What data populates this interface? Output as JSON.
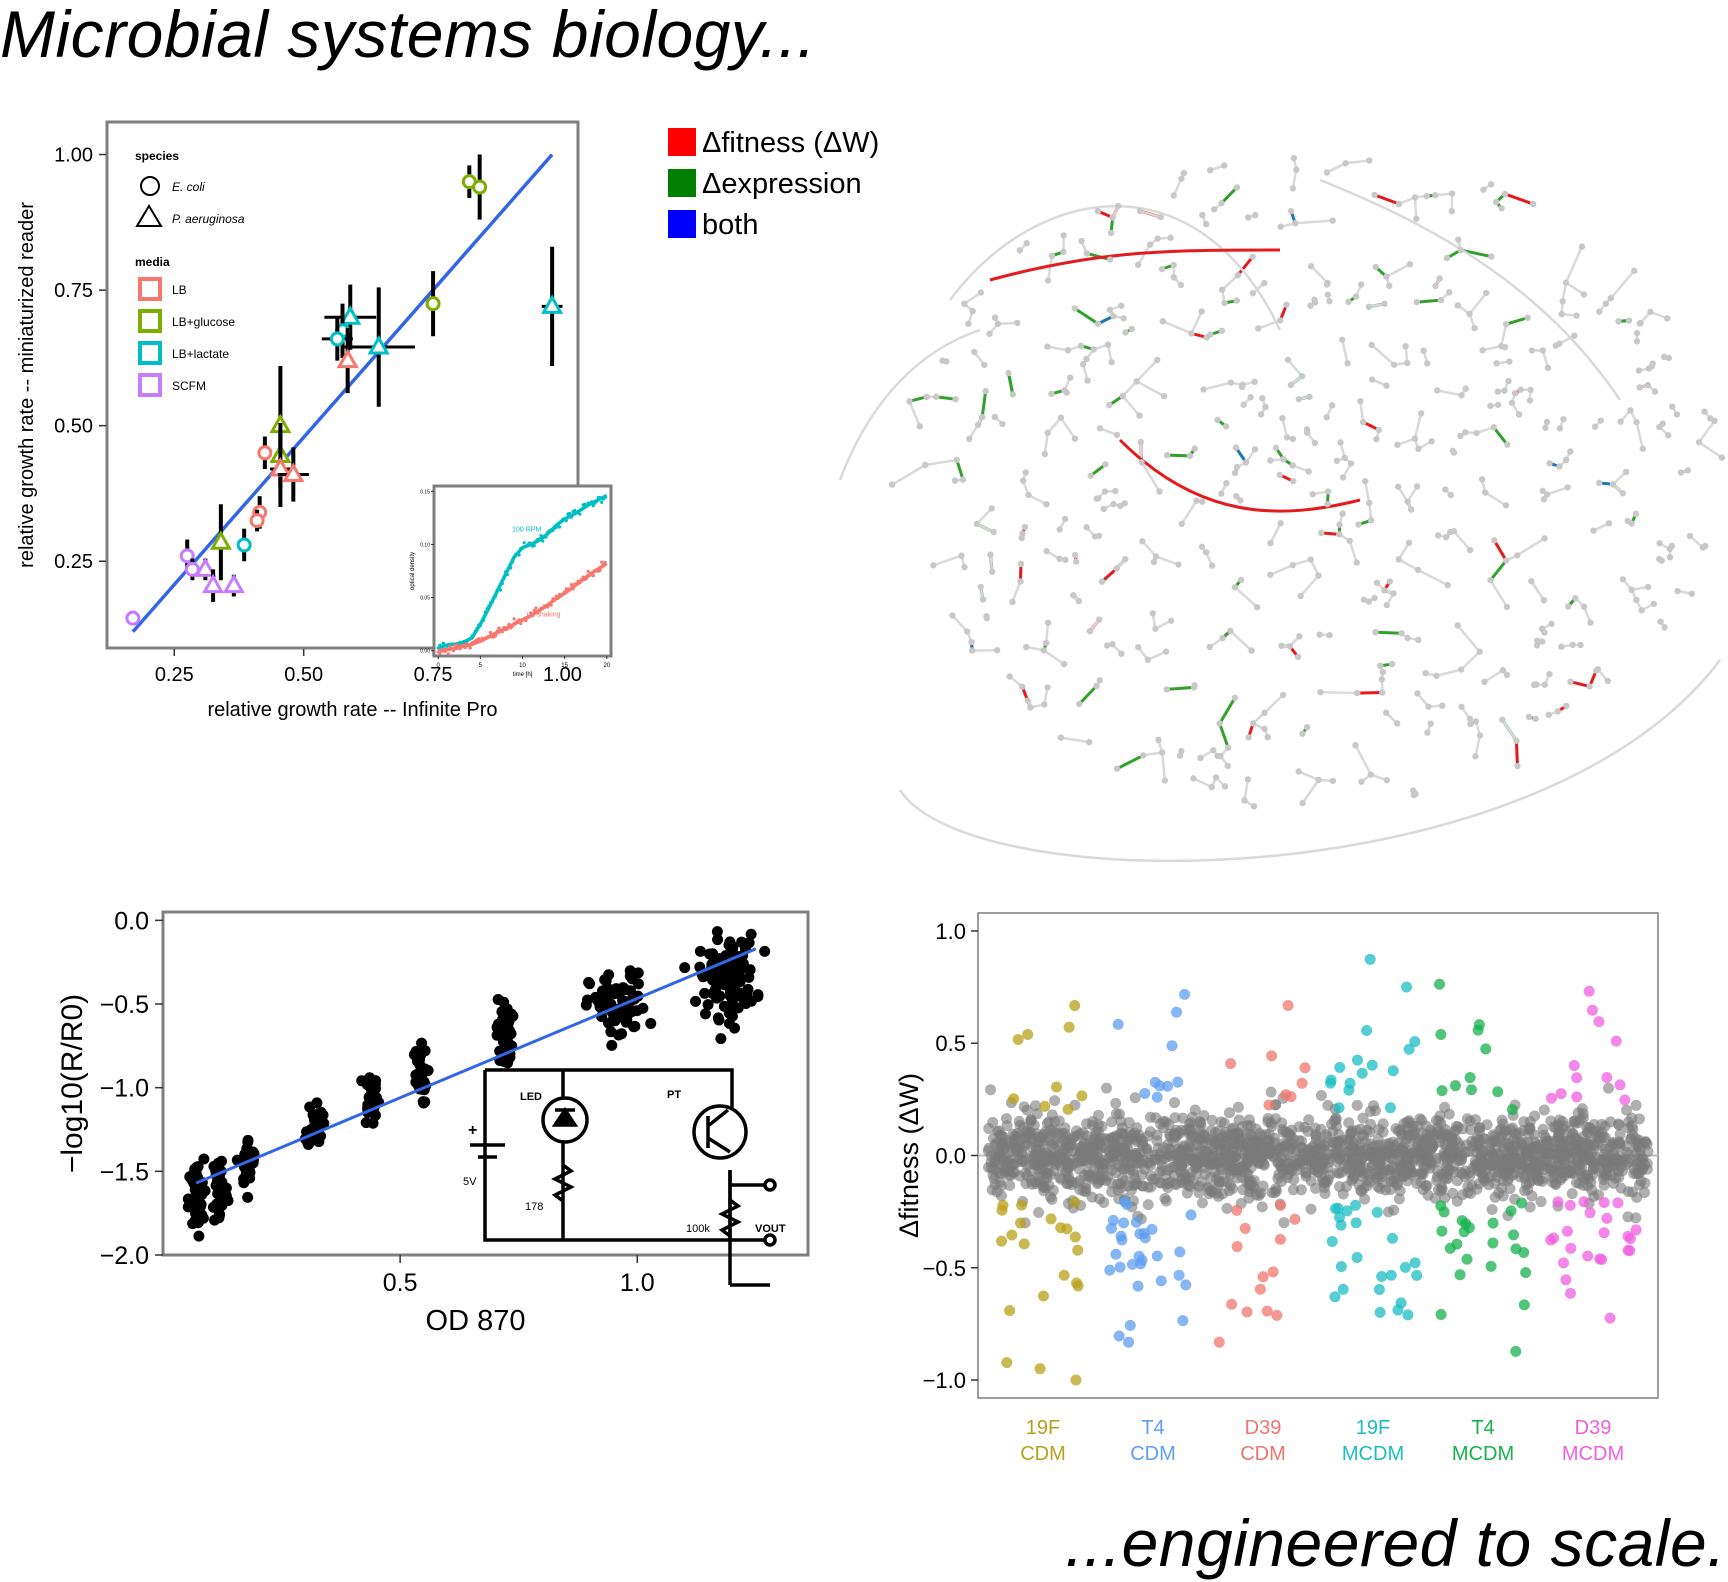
{
  "header": {
    "title": "Microbial systems biology...",
    "tagline": "...engineered to scale."
  },
  "colors": {
    "LB": "#f8766d",
    "LB+glucose": "#7cae00",
    "LB+lactate": "#00bfc4",
    "SCFM": "#c77cff",
    "fit_line": "#3366e6",
    "network_fitness": "#e41a1c",
    "network_expression": "#33a02c",
    "network_both": "#1f78b4"
  },
  "chart_data": [
    {
      "id": "growth-comparison",
      "type": "scatter",
      "title": "",
      "xlabel": "relative growth rate -- Infinite Pro",
      "ylabel": "relative growth rate -- miniaturized reader",
      "xlim": [
        0.12,
        1.03
      ],
      "ylim": [
        0.09,
        1.06
      ],
      "xticks": [
        "0.25",
        "0.50",
        "0.75",
        "1.00"
      ],
      "xtick_values": [
        0.25,
        0.5,
        0.75,
        1.0
      ],
      "yticks": [
        "0.25",
        "0.50",
        "0.75",
        "1.00"
      ],
      "ytick_values": [
        0.25,
        0.5,
        0.75,
        1.0
      ],
      "grid": false,
      "legend": {
        "placement": "top-left",
        "species_title": "species",
        "species": [
          {
            "name": "E. coli",
            "shape": "circle"
          },
          {
            "name": "P. aeruginosa",
            "shape": "triangle"
          }
        ],
        "media_title": "media",
        "media": [
          "LB",
          "LB+glucose",
          "LB+lactate",
          "SCFM"
        ]
      },
      "fit_line": {
        "x": [
          0.17,
          0.98
        ],
        "y": [
          0.12,
          1.0
        ]
      },
      "points": [
        {
          "x": 0.82,
          "y": 0.95,
          "sp": "circle",
          "m": "LB+glucose",
          "yerr": 0.03
        },
        {
          "x": 0.84,
          "y": 0.94,
          "sp": "circle",
          "m": "LB+glucose",
          "yerr": 0.06
        },
        {
          "x": 0.75,
          "y": 0.725,
          "sp": "circle",
          "m": "LB+glucose",
          "yerr": 0.06
        },
        {
          "x": 0.98,
          "y": 0.72,
          "sp": "triangle",
          "m": "LB+lactate",
          "yerr": 0.11,
          "xerr": 0.02
        },
        {
          "x": 0.59,
          "y": 0.7,
          "sp": "triangle",
          "m": "LB+lactate",
          "yerr": 0.06,
          "xerr": 0.05
        },
        {
          "x": 0.575,
          "y": 0.675,
          "sp": "circle",
          "m": "LB+lactate",
          "yerr": 0.05
        },
        {
          "x": 0.565,
          "y": 0.66,
          "sp": "circle",
          "m": "LB+lactate",
          "yerr": 0.04,
          "xerr": 0.03
        },
        {
          "x": 0.645,
          "y": 0.645,
          "sp": "triangle",
          "m": "LB+lactate",
          "yerr": 0.11,
          "xerr": 0.07
        },
        {
          "x": 0.585,
          "y": 0.62,
          "sp": "triangle",
          "m": "LB",
          "yerr": 0.06
        },
        {
          "x": 0.455,
          "y": 0.5,
          "sp": "triangle",
          "m": "LB+glucose",
          "yerr": 0.11
        },
        {
          "x": 0.455,
          "y": 0.445,
          "sp": "triangle",
          "m": "LB+glucose",
          "yerr": 0.06
        },
        {
          "x": 0.425,
          "y": 0.45,
          "sp": "circle",
          "m": "LB",
          "yerr": 0.03
        },
        {
          "x": 0.455,
          "y": 0.42,
          "sp": "triangle",
          "m": "LB",
          "yerr": 0.07,
          "xerr": 0.02
        },
        {
          "x": 0.48,
          "y": 0.41,
          "sp": "triangle",
          "m": "LB",
          "yerr": 0.05,
          "xerr": 0.03
        },
        {
          "x": 0.415,
          "y": 0.34,
          "sp": "circle",
          "m": "LB",
          "yerr": 0.03
        },
        {
          "x": 0.41,
          "y": 0.325,
          "sp": "circle",
          "m": "LB",
          "yerr": 0.02
        },
        {
          "x": 0.34,
          "y": 0.285,
          "sp": "triangle",
          "m": "LB+glucose",
          "yerr": 0.07
        },
        {
          "x": 0.385,
          "y": 0.28,
          "sp": "circle",
          "m": "LB+lactate",
          "yerr": 0.03
        },
        {
          "x": 0.275,
          "y": 0.26,
          "sp": "circle",
          "m": "SCFM",
          "yerr": 0.03
        },
        {
          "x": 0.285,
          "y": 0.235,
          "sp": "circle",
          "m": "SCFM",
          "yerr": 0.02
        },
        {
          "x": 0.31,
          "y": 0.235,
          "sp": "triangle",
          "m": "SCFM",
          "yerr": 0.02
        },
        {
          "x": 0.325,
          "y": 0.205,
          "sp": "triangle",
          "m": "SCFM",
          "yerr": 0.03
        },
        {
          "x": 0.365,
          "y": 0.205,
          "sp": "triangle",
          "m": "SCFM",
          "yerr": 0.02
        },
        {
          "x": 0.17,
          "y": 0.145,
          "sp": "circle",
          "m": "SCFM",
          "yerr": 0.01
        }
      ]
    },
    {
      "id": "growth-curve-inset",
      "type": "line",
      "xlabel": "time [h]",
      "ylabel": "optical density",
      "xlim": [
        -0.5,
        20.5
      ],
      "ylim": [
        -0.005,
        0.155
      ],
      "xticks": [
        "0",
        "5",
        "10",
        "15",
        "20"
      ],
      "xtick_values": [
        0,
        5,
        10,
        15,
        20
      ],
      "yticks": [
        "0.00",
        "0.05",
        "0.10",
        "0.15"
      ],
      "ytick_values": [
        0,
        0.05,
        0.1,
        0.15
      ],
      "annotations": [
        {
          "text": "100 RPM",
          "x": 10.5,
          "y": 0.112
        },
        {
          "text": "no shaking",
          "x": 12.5,
          "y": 0.032
        }
      ],
      "series": [
        {
          "key": "LB+lactate",
          "x": [
            0,
            1,
            2,
            3,
            4,
            5,
            6,
            7,
            8,
            9,
            10,
            11,
            12,
            13,
            14,
            15,
            16,
            17,
            18,
            19,
            20
          ],
          "y": [
            0.003,
            0.005,
            0.006,
            0.008,
            0.012,
            0.025,
            0.04,
            0.056,
            0.072,
            0.088,
            0.097,
            0.1,
            0.104,
            0.11,
            0.118,
            0.124,
            0.128,
            0.133,
            0.138,
            0.142,
            0.146
          ]
        },
        {
          "key": "LB",
          "x": [
            0,
            1,
            2,
            3,
            4,
            5,
            6,
            7,
            8,
            9,
            10,
            11,
            12,
            13,
            14,
            15,
            16,
            17,
            18,
            19,
            20
          ],
          "y": [
            0.0,
            0.001,
            0.002,
            0.004,
            0.006,
            0.009,
            0.013,
            0.017,
            0.021,
            0.025,
            0.029,
            0.033,
            0.038,
            0.043,
            0.049,
            0.054,
            0.06,
            0.066,
            0.072,
            0.077,
            0.082
          ]
        }
      ]
    },
    {
      "id": "metabolic-network",
      "type": "diagram",
      "legend": {
        "placement": "top-left",
        "items": [
          {
            "label": "Δfitness (ΔW)",
            "key": "network_fitness"
          },
          {
            "label": "Δexpression",
            "key": "network_expression"
          },
          {
            "label": "both",
            "key": "network_both"
          }
        ]
      }
    },
    {
      "id": "optical-density-calibration",
      "type": "scatter",
      "title": "",
      "xlabel": "OD 870",
      "ylabel": "−log10(R/R0)",
      "xlim": [
        0.0,
        1.36
      ],
      "ylim": [
        -2.0,
        0.05
      ],
      "xticks": [
        "0.5",
        "1.0"
      ],
      "xtick_values": [
        0.5,
        1.0
      ],
      "yticks": [
        "0.0",
        "−0.5",
        "−1.0",
        "−1.5",
        "−2.0"
      ],
      "ytick_values": [
        0.0,
        -0.5,
        -1.0,
        -1.5,
        -2.0
      ],
      "fit_line": {
        "x": [
          0.07,
          1.25
        ],
        "y": [
          -1.57,
          -0.17
        ]
      },
      "clusters": [
        {
          "x": 0.07,
          "mean": -1.67,
          "spread": 0.2,
          "n": 45
        },
        {
          "x": 0.12,
          "mean": -1.6,
          "spread": 0.2,
          "n": 45
        },
        {
          "x": 0.18,
          "mean": -1.45,
          "spread": 0.12,
          "n": 30
        },
        {
          "x": 0.32,
          "mean": -1.22,
          "spread": 0.12,
          "n": 30
        },
        {
          "x": 0.44,
          "mean": -1.05,
          "spread": 0.14,
          "n": 35
        },
        {
          "x": 0.54,
          "mean": -0.93,
          "spread": 0.14,
          "n": 35
        },
        {
          "x": 0.72,
          "mean": -0.68,
          "spread": 0.18,
          "n": 40
        },
        {
          "x": 0.96,
          "mean": -0.52,
          "spread": 0.17,
          "n": 75
        },
        {
          "x": 1.19,
          "mean": -0.33,
          "spread": 0.2,
          "n": 110
        }
      ],
      "inset_circuit": {
        "labels": {
          "led": "LED",
          "pt": "PT",
          "battery": "5V",
          "r1": "178",
          "r2": "100k",
          "out": "VOUT"
        }
      }
    },
    {
      "id": "fitness-distribution",
      "type": "scatter",
      "title": "",
      "xlabel": "",
      "ylabel": "Δfitness (ΔW)",
      "ylim": [
        -1.08,
        1.08
      ],
      "yticks": [
        "1.0",
        "0.5",
        "0.0",
        "−0.5",
        "−1.0"
      ],
      "ytick_values": [
        1.0,
        0.5,
        0.0,
        -0.5,
        -1.0
      ],
      "reference_line": 0.0,
      "groups": [
        {
          "label_line1": "19F",
          "label_line2": "CDM",
          "color": "#b8a11a",
          "n_outliers": 30
        },
        {
          "label_line1": "T4",
          "label_line2": "CDM",
          "color": "#5f9ef0",
          "n_outliers": 40
        },
        {
          "label_line1": "D39",
          "label_line2": "CDM",
          "color": "#f0756e",
          "n_outliers": 22
        },
        {
          "label_line1": "19F",
          "label_line2": "MCDM",
          "color": "#1bbcc4",
          "n_outliers": 40
        },
        {
          "label_line1": "T4",
          "label_line2": "MCDM",
          "color": "#16b24c",
          "n_outliers": 34
        },
        {
          "label_line1": "D39",
          "label_line2": "MCDM",
          "color": "#f060e0",
          "n_outliers": 36
        }
      ]
    }
  ]
}
